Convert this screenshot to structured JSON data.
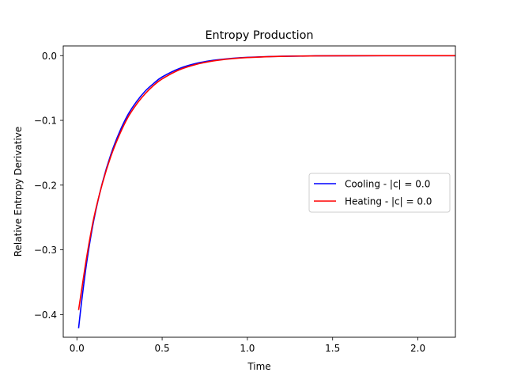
{
  "chart_data": {
    "type": "line",
    "title": "Entropy Production",
    "xlabel": "Time",
    "ylabel": "Relative Entropy Derivative",
    "xlim": [
      -0.08,
      2.22
    ],
    "ylim": [
      -0.435,
      0.015
    ],
    "xticks": [
      0.0,
      0.5,
      1.0,
      1.5,
      2.0
    ],
    "xtick_labels": [
      "0.0",
      "0.5",
      "1.0",
      "1.5",
      "2.0"
    ],
    "yticks": [
      0.0,
      -0.1,
      -0.2,
      -0.3,
      -0.4
    ],
    "ytick_labels": [
      "0.0",
      "−0.1",
      "−0.2",
      "−0.3",
      "−0.4"
    ],
    "grid": false,
    "legend_position": "center-right",
    "series": [
      {
        "name": "Cooling - |c| = 0.0",
        "color": "#0000ff",
        "x": [
          0.01,
          0.03,
          0.06,
          0.1,
          0.15,
          0.2,
          0.25,
          0.3,
          0.35,
          0.4,
          0.45,
          0.5,
          0.6,
          0.7,
          0.8,
          0.9,
          1.0,
          1.2,
          1.4,
          1.6,
          1.8,
          2.0,
          2.22
        ],
        "values": [
          -0.421,
          -0.375,
          -0.315,
          -0.253,
          -0.196,
          -0.152,
          -0.118,
          -0.091,
          -0.071,
          -0.055,
          -0.043,
          -0.033,
          -0.02,
          -0.012,
          -0.0072,
          -0.0044,
          -0.0026,
          -0.001,
          -0.0004,
          -0.00015,
          -5e-05,
          -2e-05,
          0.0
        ]
      },
      {
        "name": "Heating - |c| = 0.0",
        "color": "#ff0000",
        "x": [
          0.01,
          0.03,
          0.06,
          0.1,
          0.15,
          0.2,
          0.25,
          0.3,
          0.35,
          0.4,
          0.45,
          0.5,
          0.6,
          0.7,
          0.8,
          0.9,
          1.0,
          1.2,
          1.4,
          1.6,
          1.8,
          2.0,
          2.22
        ],
        "values": [
          -0.393,
          -0.358,
          -0.307,
          -0.25,
          -0.197,
          -0.155,
          -0.122,
          -0.095,
          -0.075,
          -0.059,
          -0.046,
          -0.036,
          -0.022,
          -0.0135,
          -0.0082,
          -0.005,
          -0.003,
          -0.0011,
          -0.0004,
          -0.00016,
          -6e-05,
          -2e-05,
          0.0
        ]
      }
    ]
  }
}
